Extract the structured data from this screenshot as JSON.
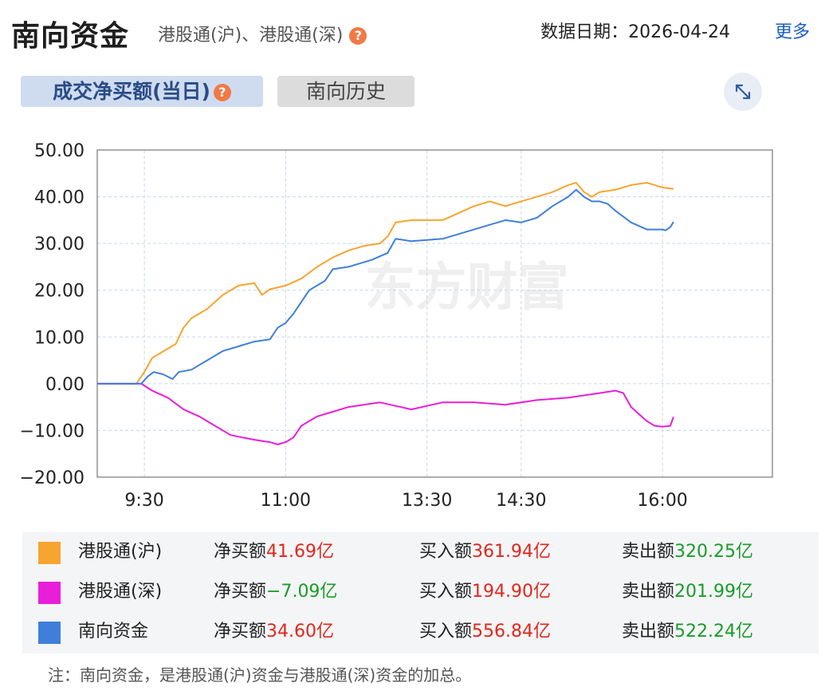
{
  "header": {
    "title": "南向资金",
    "subtitle": "港股通(沪)、港股通(深)",
    "date_label": "数据日期：",
    "date_value": "2026-04-24",
    "more_label": "更多"
  },
  "tabs": [
    {
      "label": "成交净买额(当日)",
      "active": true
    },
    {
      "label": "南向历史",
      "active": false
    }
  ],
  "watermark": "东方财富",
  "chart_data": {
    "type": "line",
    "ylim": [
      -20,
      50
    ],
    "y_ticks": [
      "50.00",
      "40.00",
      "30.00",
      "20.00",
      "10.00",
      "0.00",
      "−10.00",
      "−20.00"
    ],
    "x_domain_minutes": [
      540,
      970
    ],
    "x_ticks": [
      {
        "label": "9:30",
        "t": 570
      },
      {
        "label": "11:00",
        "t": 660
      },
      {
        "label": "13:30",
        "t": 750
      },
      {
        "label": "14:30",
        "t": 810
      },
      {
        "label": "16:00",
        "t": 900
      }
    ],
    "grid": true,
    "series": [
      {
        "name": "港股通(沪)",
        "color": "#f6a530",
        "points": [
          [
            540,
            0
          ],
          [
            565,
            0
          ],
          [
            570,
            2.5
          ],
          [
            575,
            5.5
          ],
          [
            580,
            6.5
          ],
          [
            585,
            7.5
          ],
          [
            590,
            8.5
          ],
          [
            595,
            12
          ],
          [
            600,
            14
          ],
          [
            610,
            16
          ],
          [
            620,
            19
          ],
          [
            630,
            21
          ],
          [
            640,
            21.5
          ],
          [
            645,
            19
          ],
          [
            650,
            20.2
          ],
          [
            660,
            21
          ],
          [
            670,
            22.5
          ],
          [
            680,
            25
          ],
          [
            690,
            27
          ],
          [
            700,
            28.5
          ],
          [
            710,
            29.5
          ],
          [
            720,
            30
          ],
          [
            725,
            31.5
          ],
          [
            730,
            34.5
          ],
          [
            740,
            35
          ],
          [
            760,
            35
          ],
          [
            780,
            38
          ],
          [
            790,
            39
          ],
          [
            800,
            38
          ],
          [
            810,
            39
          ],
          [
            820,
            40
          ],
          [
            830,
            41
          ],
          [
            840,
            42.5
          ],
          [
            845,
            43
          ],
          [
            850,
            41
          ],
          [
            855,
            40
          ],
          [
            860,
            41
          ],
          [
            870,
            41.5
          ],
          [
            880,
            42.5
          ],
          [
            890,
            43
          ],
          [
            895,
            42.5
          ],
          [
            900,
            42
          ],
          [
            907,
            41.69
          ]
        ]
      },
      {
        "name": "港股通(深)",
        "color": "#e91ed9",
        "points": [
          [
            540,
            0
          ],
          [
            568,
            0
          ],
          [
            575,
            -1.5
          ],
          [
            585,
            -3
          ],
          [
            595,
            -5.5
          ],
          [
            605,
            -7
          ],
          [
            615,
            -9
          ],
          [
            625,
            -11
          ],
          [
            640,
            -12
          ],
          [
            650,
            -12.5
          ],
          [
            655,
            -13
          ],
          [
            660,
            -12.5
          ],
          [
            665,
            -11.5
          ],
          [
            670,
            -9
          ],
          [
            680,
            -7
          ],
          [
            690,
            -6
          ],
          [
            700,
            -5
          ],
          [
            720,
            -4
          ],
          [
            740,
            -5.5
          ],
          [
            760,
            -4
          ],
          [
            780,
            -4
          ],
          [
            800,
            -4.5
          ],
          [
            820,
            -3.5
          ],
          [
            840,
            -3
          ],
          [
            860,
            -2
          ],
          [
            870,
            -1.5
          ],
          [
            875,
            -2
          ],
          [
            880,
            -5
          ],
          [
            890,
            -8
          ],
          [
            895,
            -9
          ],
          [
            900,
            -9.2
          ],
          [
            905,
            -9
          ],
          [
            907,
            -7.09
          ]
        ]
      },
      {
        "name": "南向资金",
        "color": "#3f7fd9",
        "points": [
          [
            540,
            0
          ],
          [
            568,
            0
          ],
          [
            572,
            1.5
          ],
          [
            576,
            2.5
          ],
          [
            582,
            2
          ],
          [
            588,
            1
          ],
          [
            592,
            2.5
          ],
          [
            600,
            3
          ],
          [
            610,
            5
          ],
          [
            620,
            7
          ],
          [
            630,
            8
          ],
          [
            640,
            9
          ],
          [
            650,
            9.5
          ],
          [
            655,
            12
          ],
          [
            660,
            13
          ],
          [
            665,
            15
          ],
          [
            675,
            20
          ],
          [
            685,
            22
          ],
          [
            690,
            24.5
          ],
          [
            700,
            25
          ],
          [
            715,
            26.5
          ],
          [
            725,
            28
          ],
          [
            730,
            31
          ],
          [
            740,
            30.5
          ],
          [
            760,
            31
          ],
          [
            770,
            32
          ],
          [
            780,
            33
          ],
          [
            790,
            34
          ],
          [
            800,
            35
          ],
          [
            810,
            34.5
          ],
          [
            820,
            35.5
          ],
          [
            830,
            38
          ],
          [
            840,
            40
          ],
          [
            845,
            41.5
          ],
          [
            850,
            40
          ],
          [
            855,
            39
          ],
          [
            860,
            39
          ],
          [
            865,
            38.5
          ],
          [
            870,
            37
          ],
          [
            880,
            34.5
          ],
          [
            890,
            33
          ],
          [
            895,
            33
          ],
          [
            900,
            33
          ],
          [
            902,
            32.8
          ],
          [
            905,
            33.5
          ],
          [
            907,
            34.6
          ]
        ]
      }
    ]
  },
  "legend": [
    {
      "name": "港股通(沪)",
      "color": "#f6a530",
      "net_label": "净买额",
      "net_value": "41.69亿",
      "net_tone": "red",
      "buy_label": "买入额",
      "buy_value": "361.94亿",
      "sell_label": "卖出额",
      "sell_value": "320.25亿"
    },
    {
      "name": "港股通(深)",
      "color": "#e91ed9",
      "net_label": "净买额",
      "net_value": "−7.09亿",
      "net_tone": "green",
      "buy_label": "买入额",
      "buy_value": "194.90亿",
      "sell_label": "卖出额",
      "sell_value": "201.99亿"
    },
    {
      "name": "南向资金",
      "color": "#3f7fd9",
      "net_label": "净买额",
      "net_value": "34.60亿",
      "net_tone": "red",
      "buy_label": "买入额",
      "buy_value": "556.84亿",
      "sell_label": "卖出额",
      "sell_value": "522.24亿"
    }
  ],
  "note": "注：南向资金，是港股通(沪)资金与港股通(深)资金的加总。"
}
